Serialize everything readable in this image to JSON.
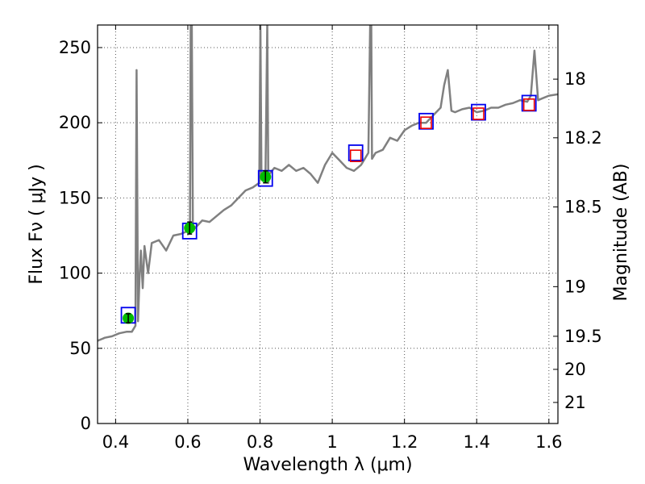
{
  "chart_data": {
    "type": "line",
    "xlabel": "Wavelength  λ (μm)",
    "ylabel": "Flux  Fν  ( μJy )",
    "ylabel_right": "Magnitude (AB)",
    "xlim": [
      0.35,
      1.625
    ],
    "ylim": [
      0,
      265
    ],
    "grid": true,
    "x_ticks": [
      0.4,
      0.6,
      0.8,
      1.0,
      1.2,
      1.4,
      1.6
    ],
    "x_tick_labels": [
      "0.4",
      "0.6",
      "0.8",
      "1",
      "1.2",
      "1.4",
      "1.6"
    ],
    "y_ticks": [
      0,
      50,
      100,
      150,
      200,
      250
    ],
    "y_tick_labels": [
      "0",
      "50",
      "100",
      "150",
      "200",
      "250"
    ],
    "mag_ticks": [
      {
        "label": "18",
        "flux": 229
      },
      {
        "label": "18.2",
        "flux": 190
      },
      {
        "label": "18.5",
        "flux": 144
      },
      {
        "label": "19",
        "flux": 91
      },
      {
        "label": "19.5",
        "flux": 58
      },
      {
        "label": "20",
        "flux": 36
      },
      {
        "label": "21",
        "flux": 14
      }
    ],
    "colors": {
      "spectrum": "#808080",
      "model_box": "#0000ee",
      "observed_box": "#ee0000",
      "observed_point": "#00bb00",
      "error_bar": "#000000",
      "grid": "#555555"
    },
    "series": [
      {
        "type": "line",
        "x": [
          0.35,
          0.37,
          0.39,
          0.41,
          0.43,
          0.445,
          0.455,
          0.458,
          0.462,
          0.466,
          0.47,
          0.475,
          0.48,
          0.49,
          0.5,
          0.52,
          0.54,
          0.56,
          0.58,
          0.6,
          0.606,
          0.608,
          0.611,
          0.614,
          0.62,
          0.64,
          0.66,
          0.68,
          0.7,
          0.72,
          0.74,
          0.76,
          0.78,
          0.798,
          0.801,
          0.804,
          0.808,
          0.815,
          0.82,
          0.823,
          0.826,
          0.84,
          0.86,
          0.88,
          0.9,
          0.92,
          0.94,
          0.96,
          0.98,
          1.0,
          1.02,
          1.04,
          1.06,
          1.08,
          1.1,
          1.105,
          1.108,
          1.11,
          1.115,
          1.12,
          1.14,
          1.16,
          1.18,
          1.2,
          1.22,
          1.24,
          1.26,
          1.28,
          1.3,
          1.31,
          1.32,
          1.33,
          1.34,
          1.36,
          1.38,
          1.4,
          1.42,
          1.44,
          1.46,
          1.48,
          1.5,
          1.52,
          1.54,
          1.55,
          1.56,
          1.57,
          1.58,
          1.6,
          1.625
        ],
        "y": [
          55,
          57,
          58,
          60,
          61,
          61,
          65,
          235,
          68,
          95,
          115,
          90,
          118,
          100,
          120,
          122,
          115,
          125,
          126,
          128,
          129,
          265,
          265,
          132,
          130,
          135,
          134,
          138,
          142,
          145,
          150,
          155,
          157,
          160,
          265,
          163,
          164,
          162,
          265,
          160,
          166,
          170,
          168,
          172,
          168,
          170,
          166,
          160,
          172,
          180,
          175,
          170,
          168,
          172,
          180,
          265,
          265,
          176,
          178,
          180,
          182,
          190,
          188,
          195,
          198,
          200,
          200,
          205,
          210,
          225,
          235,
          208,
          207,
          209,
          210,
          207,
          208,
          210,
          210,
          212,
          213,
          215,
          214,
          218,
          248,
          215,
          216,
          218,
          219
        ]
      },
      {
        "type": "scatter",
        "name_points": "observed",
        "x": [
          0.435,
          0.605,
          0.815,
          1.065,
          1.26,
          1.405,
          1.545
        ],
        "y": [
          70,
          130,
          164,
          178,
          200,
          206,
          212
        ],
        "err": [
          3,
          4,
          4,
          0,
          0,
          0,
          0
        ],
        "model_y": [
          72,
          128,
          163,
          180,
          201,
          207,
          213
        ]
      }
    ]
  }
}
